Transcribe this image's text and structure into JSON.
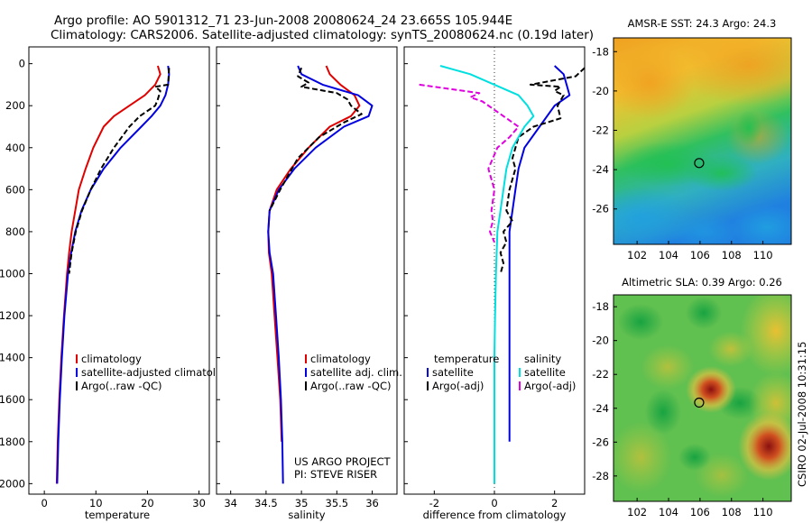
{
  "header": {
    "line1": "Argo profile: AO 5901312_71 23-Jun-2008 20080624_24 23.665S 105.944E",
    "line2": "Climatology: CARS2006. Satellite-adjusted climatology: synTS_20080624.nc (0.19d later)"
  },
  "chart_data": [
    {
      "type": "line",
      "id": "temperature",
      "xlabel": "temperature",
      "ylabel": "",
      "xlim": [
        -3,
        32
      ],
      "ylim": [
        2050,
        0
      ],
      "xticks": [
        0,
        10,
        20,
        30
      ],
      "yticks": [
        0,
        200,
        400,
        600,
        800,
        1000,
        1200,
        1400,
        1600,
        1800,
        2000
      ],
      "legend": [
        "climatology",
        "satellite-adjusted climatology",
        "Argo(..raw -QC)"
      ],
      "series": [
        {
          "name": "climatology",
          "color": "#e00000",
          "dash": "",
          "x": [
            22.0,
            22.5,
            21.5,
            19.5,
            16.5,
            13.5,
            11.5,
            9.5,
            8.0,
            6.7,
            6.0,
            5.3,
            4.8,
            4.4,
            3.8,
            3.3,
            2.9,
            2.6,
            2.4
          ],
          "y": [
            10,
            50,
            100,
            150,
            200,
            250,
            300,
            400,
            500,
            600,
            700,
            800,
            900,
            1000,
            1200,
            1400,
            1600,
            1800,
            2000
          ]
        },
        {
          "name": "satellite-adjusted climatology",
          "color": "#0000e0",
          "dash": "",
          "x": [
            24.0,
            24.2,
            24.0,
            23.5,
            22.5,
            20.8,
            18.8,
            14.8,
            11.5,
            9.0,
            7.2,
            6.0,
            5.2,
            4.6,
            3.9,
            3.4,
            3.0,
            2.7,
            2.5
          ],
          "y": [
            10,
            50,
            100,
            150,
            200,
            250,
            300,
            400,
            500,
            600,
            700,
            800,
            900,
            1000,
            1200,
            1400,
            1600,
            1800,
            2000
          ]
        },
        {
          "name": "Argo(..raw -QC)",
          "color": "#000000",
          "dash": "6,3",
          "x": [
            24.2,
            24.1,
            24.0,
            21.5,
            22.5,
            22.0,
            21.5,
            18.5,
            16.5,
            13.5,
            11.0,
            9.0,
            7.3,
            6.1,
            5.3,
            4.8
          ],
          "y": [
            20,
            60,
            100,
            110,
            130,
            170,
            200,
            250,
            300,
            400,
            500,
            600,
            700,
            800,
            900,
            1000
          ]
        }
      ]
    },
    {
      "type": "line",
      "id": "salinity",
      "xlabel": "salinity",
      "xlim": [
        33.8,
        30.35
      ],
      "xlim_note": "right edge of axis is 36.35",
      "xmax": 36.35,
      "ylim": [
        2050,
        0
      ],
      "xticks": [
        34,
        34.5,
        35,
        35.5,
        36
      ],
      "xticklabels": [
        "34",
        "34.5",
        "35",
        "35.5",
        "36"
      ],
      "legend": [
        "climatology",
        "satellite adj. clim.",
        "Argo(..raw -QC)"
      ],
      "annotations": [
        "US ARGO PROJECT",
        "PI: STEVE RISER"
      ],
      "series": [
        {
          "name": "climatology",
          "color": "#e00000",
          "dash": "",
          "x": [
            35.35,
            35.4,
            35.55,
            35.75,
            35.82,
            35.7,
            35.4,
            35.1,
            34.85,
            34.65,
            34.55,
            34.53,
            34.54,
            34.58,
            34.62,
            34.66,
            34.7,
            34.72
          ],
          "y": [
            10,
            50,
            100,
            150,
            200,
            250,
            300,
            400,
            500,
            600,
            700,
            800,
            900,
            1000,
            1200,
            1400,
            1600,
            1800
          ]
        },
        {
          "name": "satellite adj. clim.",
          "color": "#0000e0",
          "dash": "",
          "x": [
            34.95,
            35.0,
            35.3,
            35.8,
            36.0,
            35.95,
            35.6,
            35.2,
            34.9,
            34.68,
            34.55,
            34.53,
            34.55,
            34.6,
            34.64,
            34.68,
            34.71,
            34.73,
            34.74
          ],
          "y": [
            10,
            50,
            100,
            150,
            200,
            250,
            300,
            400,
            500,
            600,
            700,
            800,
            900,
            1000,
            1200,
            1400,
            1600,
            1800,
            2000
          ]
        },
        {
          "name": "Argo(..raw -QC)",
          "color": "#000000",
          "dash": "6,3",
          "x": [
            35.0,
            34.95,
            35.1,
            35.0,
            35.5,
            35.65,
            35.7,
            35.85,
            35.6,
            35.25,
            34.95,
            34.7,
            34.55
          ],
          "y": [
            20,
            60,
            90,
            110,
            140,
            170,
            200,
            240,
            280,
            350,
            450,
            600,
            700
          ]
        }
      ]
    },
    {
      "type": "line",
      "id": "difference",
      "xlabel": "difference from climatology",
      "xlim": [
        -3,
        3
      ],
      "ylim": [
        2050,
        0
      ],
      "xticks": [
        -2,
        0,
        2
      ],
      "legend_headers": [
        "temperature",
        "salinity"
      ],
      "legend": [
        "satellite",
        "Argo(-adj)",
        "satellite",
        "Argo(-adj)"
      ],
      "series": [
        {
          "name": "temperature satellite",
          "color": "#0000e0",
          "dash": "",
          "x": [
            2.0,
            2.3,
            2.4,
            2.5,
            2.0,
            1.5,
            1.0,
            0.8,
            0.7,
            0.6,
            0.5,
            0.5,
            0.5,
            0.5,
            0.5,
            0.5
          ],
          "y": [
            10,
            50,
            100,
            150,
            200,
            300,
            400,
            500,
            600,
            700,
            800,
            1000,
            1200,
            1400,
            1600,
            1800
          ]
        },
        {
          "name": "temperature Argo(-adj)",
          "color": "#000000",
          "dash": "6,3",
          "x": [
            3.0,
            2.7,
            1.2,
            2.2,
            2.0,
            2.3,
            2.1,
            2.2,
            1.3,
            0.8,
            0.6,
            0.7,
            0.5,
            0.4,
            0.6,
            0.3,
            0.4,
            0.2,
            0.3,
            0.2
          ],
          "y": [
            20,
            60,
            100,
            110,
            130,
            150,
            200,
            260,
            300,
            350,
            450,
            500,
            600,
            700,
            750,
            800,
            850,
            900,
            950,
            1000
          ]
        },
        {
          "name": "salinity satellite",
          "color": "#00e0e0",
          "dash": "",
          "x": [
            -1.8,
            -0.8,
            0.0,
            0.8,
            1.1,
            1.3,
            1.0,
            0.6,
            0.4,
            0.3,
            0.2,
            0.1,
            0.05,
            0.02,
            0.0,
            0.0
          ],
          "y": [
            10,
            50,
            100,
            150,
            200,
            250,
            300,
            400,
            500,
            600,
            700,
            800,
            1000,
            1200,
            1400,
            2000
          ]
        },
        {
          "name": "salinity Argo(-adj)",
          "color": "#e000e0",
          "dash": "6,3",
          "x": [
            -2.5,
            -2.0,
            -1.0,
            -0.5,
            -0.8,
            -0.4,
            0.3,
            0.8,
            0.5,
            0.1,
            -0.2,
            0.0,
            -0.1,
            -0.05,
            -0.15,
            0.0
          ],
          "y": [
            100,
            110,
            130,
            140,
            160,
            180,
            250,
            300,
            350,
            400,
            500,
            600,
            700,
            750,
            800,
            850
          ]
        }
      ]
    }
  ],
  "maps": {
    "sst": {
      "title": "AMSR-E SST: 24.3 Argo: 24.3",
      "lon_ticks": [
        "102",
        "104",
        "106",
        "108",
        "110"
      ],
      "lat_ticks": [
        "-18",
        "-20",
        "-22",
        "-24",
        "-26",
        "-28"
      ],
      "lon_range": [
        100.5,
        111.8
      ],
      "lat_range": [
        -27.8,
        -17.3
      ],
      "marker": {
        "lon": 105.944,
        "lat": -23.665
      }
    },
    "sla": {
      "title": "Altimetric SLA: 0.39 Argo: 0.26",
      "lon_ticks": [
        "102",
        "104",
        "106",
        "108",
        "110"
      ],
      "lat_ticks": [
        "-18",
        "-20",
        "-22",
        "-24",
        "-26",
        "-28"
      ],
      "lon_range": [
        100.5,
        111.8
      ],
      "lat_range": [
        -29.5,
        -17.3
      ],
      "marker": {
        "lon": 105.944,
        "lat": -23.665
      }
    }
  },
  "footer": {
    "side_label": "CSIRO 02-Jul-2008 10:31:15"
  }
}
